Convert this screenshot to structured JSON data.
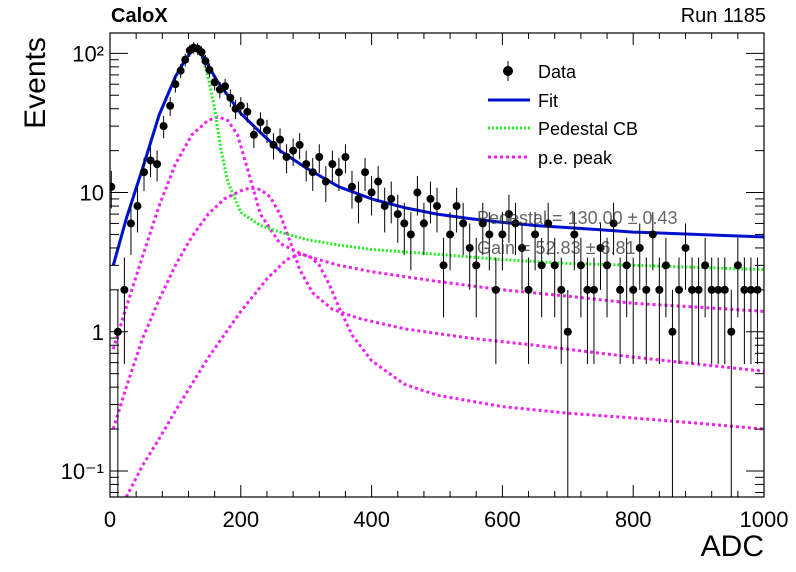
{
  "header": {
    "experiment": "CaloX",
    "run": "Run 1185"
  },
  "fit_info": {
    "line1": "Pedestal = 130.00 ± 0.43",
    "line2": "Gain = 52.83 ± 6.81"
  },
  "colors": {
    "data": "#000000",
    "fit": "#0010d0",
    "pedestal": "#22ee22",
    "pe": "#ee22ee"
  },
  "chart_data": {
    "type": "scatter",
    "xlabel": "ADC",
    "ylabel": "Events",
    "xlim": [
      0,
      1000
    ],
    "ylim": [
      0.065,
      140
    ],
    "yscale": "log",
    "x_ticks": [
      0,
      200,
      400,
      600,
      800,
      1000
    ],
    "x_tick_labels": [
      "0",
      "200",
      "400",
      "600",
      "800",
      "1000"
    ],
    "y_ticks": [
      0.1,
      1,
      10,
      100
    ],
    "y_tick_labels": [
      "10⁻¹",
      "1",
      "10",
      "10²"
    ],
    "legend": {
      "position": "top-right",
      "entries": [
        "Data",
        "Fit",
        "Pedestal CB",
        "p.e. peak"
      ]
    },
    "series": [
      {
        "name": "Data",
        "kind": "points_with_errors",
        "x": [
          2,
          12,
          22,
          32,
          42,
          52,
          62,
          72,
          82,
          92,
          100,
          108,
          115,
          122,
          128,
          134,
          140,
          146,
          152,
          160,
          168,
          176,
          184,
          192,
          200,
          210,
          220,
          230,
          240,
          250,
          260,
          270,
          280,
          290,
          300,
          310,
          320,
          330,
          340,
          350,
          360,
          370,
          380,
          390,
          400,
          410,
          420,
          430,
          440,
          450,
          460,
          470,
          480,
          490,
          500,
          510,
          520,
          530,
          540,
          550,
          560,
          570,
          580,
          590,
          600,
          610,
          620,
          630,
          640,
          650,
          660,
          670,
          680,
          690,
          700,
          710,
          720,
          730,
          740,
          750,
          760,
          770,
          780,
          790,
          800,
          810,
          820,
          830,
          840,
          850,
          860,
          870,
          880,
          890,
          900,
          910,
          920,
          930,
          940,
          950,
          960,
          970,
          980,
          990
        ],
        "y": [
          11,
          1,
          2,
          6,
          8,
          14,
          17,
          16,
          30,
          42,
          60,
          75,
          90,
          105,
          110,
          108,
          102,
          88,
          76,
          62,
          55,
          58,
          48,
          40,
          42,
          38,
          26,
          32,
          28,
          22,
          24,
          18,
          20,
          22,
          16,
          14,
          18,
          12,
          16,
          14,
          18,
          11,
          9,
          14,
          10,
          12,
          8,
          9,
          7,
          6,
          5,
          10,
          6,
          9,
          8,
          3,
          5,
          8,
          6,
          4,
          3,
          6,
          5,
          2,
          5,
          7,
          6,
          4,
          2,
          5,
          3,
          6,
          3,
          2,
          1,
          5,
          3,
          2,
          2,
          4,
          3,
          6,
          2,
          3,
          2,
          4,
          2,
          5,
          2,
          3,
          1,
          2,
          4,
          2,
          2,
          3,
          2,
          2,
          2,
          1,
          3,
          2,
          2,
          2
        ]
      },
      {
        "name": "Fit",
        "kind": "curve",
        "x": [
          5,
          25,
          50,
          75,
          100,
          115,
          125,
          132,
          140,
          150,
          165,
          180,
          200,
          230,
          260,
          300,
          350,
          400,
          450,
          500,
          550,
          600,
          650,
          700,
          750,
          800,
          850,
          900,
          950,
          1000
        ],
        "y": [
          3,
          6.5,
          15,
          36,
          68,
          90,
          104,
          106,
          100,
          82,
          62,
          50,
          37,
          27,
          20,
          15,
          11,
          9,
          7.8,
          7.0,
          6.5,
          6.1,
          5.8,
          5.6,
          5.4,
          5.2,
          5.1,
          5.0,
          4.9,
          4.8
        ]
      },
      {
        "name": "Pedestal CB",
        "kind": "curve",
        "x": [
          5,
          25,
          50,
          75,
          100,
          115,
          125,
          132,
          140,
          150,
          160,
          170,
          180,
          200,
          230,
          260,
          300,
          350,
          400,
          500,
          600,
          700,
          800,
          900,
          1000
        ],
        "y": [
          3,
          6.5,
          15,
          36,
          68,
          90,
          104,
          106,
          96,
          68,
          40,
          20,
          12,
          7.2,
          5.8,
          5.2,
          4.6,
          4.2,
          3.9,
          3.6,
          3.3,
          3.1,
          3.0,
          2.9,
          2.8
        ]
      },
      {
        "name": "p.e. peak 1",
        "kind": "curve",
        "x": [
          5,
          25,
          50,
          75,
          100,
          125,
          150,
          165,
          180,
          195,
          210,
          230,
          260,
          300,
          350,
          400,
          500,
          600,
          700,
          800,
          900,
          1000
        ],
        "y": [
          0.75,
          1.5,
          3.5,
          8,
          16,
          26,
          33,
          35,
          33,
          26,
          15,
          7,
          4.3,
          3.5,
          3.0,
          2.7,
          2.3,
          2.0,
          1.8,
          1.6,
          1.5,
          1.4
        ]
      },
      {
        "name": "p.e. peak 2",
        "kind": "curve",
        "x": [
          5,
          25,
          50,
          75,
          100,
          125,
          150,
          175,
          200,
          215,
          230,
          245,
          260,
          275,
          290,
          310,
          340,
          380,
          450,
          550,
          650,
          750,
          850,
          1000
        ],
        "y": [
          0.2,
          0.4,
          0.9,
          1.7,
          3.0,
          4.8,
          7,
          9,
          10.3,
          10.8,
          10.5,
          9.3,
          7,
          4.5,
          2.8,
          1.9,
          1.45,
          1.25,
          1.05,
          0.9,
          0.8,
          0.7,
          0.62,
          0.52
        ]
      },
      {
        "name": "p.e. peak 3",
        "kind": "curve",
        "x": [
          25,
          50,
          75,
          100,
          150,
          200,
          240,
          270,
          290,
          305,
          320,
          335,
          350,
          370,
          400,
          450,
          500,
          600,
          700,
          800,
          900,
          1000
        ],
        "y": [
          0.065,
          0.11,
          0.17,
          0.27,
          0.65,
          1.4,
          2.4,
          3.3,
          3.6,
          3.5,
          3.0,
          2.2,
          1.5,
          0.95,
          0.62,
          0.42,
          0.35,
          0.29,
          0.26,
          0.24,
          0.22,
          0.2
        ]
      }
    ]
  }
}
